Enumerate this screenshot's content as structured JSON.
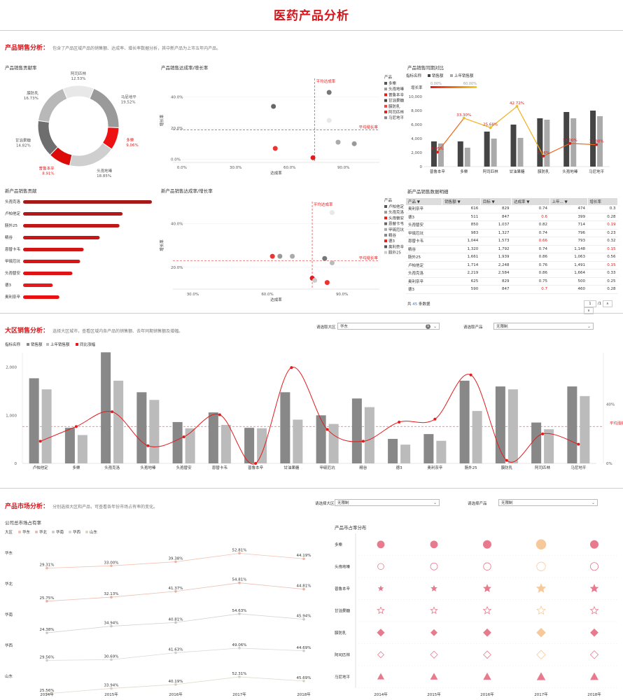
{
  "title": "医药产品分析",
  "sales_section": {
    "title": "产品销售分析：",
    "desc": "包含了产品区域产品的销售额、达成率、增长率数据分析，其中新产品为上市五年内产品。"
  },
  "donut": {
    "title": "产品销售贡献率",
    "slices": [
      {
        "name": "阿司匹林",
        "pct": "12.53%",
        "value": 12.53,
        "color": "#e8e8e8"
      },
      {
        "name": "马尼地平",
        "pct": "19.52%",
        "value": 19.52,
        "color": "#9a9a9a"
      },
      {
        "name": "多樂",
        "pct": "9.06%",
        "value": 9.06,
        "color": "#ee1111"
      },
      {
        "name": "头孢地嗪",
        "pct": "18.85%",
        "value": 18.85,
        "color": "#cfcfcf"
      },
      {
        "name": "普鲁本辛",
        "pct": "8.91%",
        "value": 8.91,
        "color": "#dd0a0a"
      },
      {
        "name": "甘油果糖",
        "pct": "14.82%",
        "value": 14.82,
        "color": "#6e6e6e"
      },
      {
        "name": "膜防乳",
        "pct": "16.73%",
        "value": 16.73,
        "color": "#b8b8b8"
      }
    ]
  },
  "scatter1": {
    "title": "产品销售达成率/增长率",
    "xlabel": "达成率",
    "ylabel": "增长率",
    "xticks": [
      "0.0%",
      "30.0%",
      "60.0%",
      "90.0%"
    ],
    "yticks": [
      "0.0%",
      "20.0%",
      "40.0%"
    ],
    "avg_x_label": "平均达成率",
    "avg_y_label": "平均增长率",
    "avg_x": 0.74,
    "avg_y": 0.19,
    "legend_title": "产品",
    "legend": [
      {
        "name": "多樂",
        "color": "#555"
      },
      {
        "name": "头孢地嗪",
        "color": "#999"
      },
      {
        "name": "普鲁本辛",
        "color": "#e41a1c"
      },
      {
        "name": "甘油果糖",
        "color": "#444"
      },
      {
        "name": "膜防乳",
        "color": "#ee4444"
      },
      {
        "name": "阿司匹林",
        "color": "#dd2222"
      },
      {
        "name": "马尼地平",
        "color": "#888"
      }
    ],
    "points": [
      {
        "x": 0.82,
        "y": 0.43,
        "color": "#777"
      },
      {
        "x": 0.51,
        "y": 0.34,
        "color": "#666"
      },
      {
        "x": 0.82,
        "y": 0.25,
        "color": "#e8e8e8"
      },
      {
        "x": 0.87,
        "y": 0.11,
        "color": "#aaa"
      },
      {
        "x": 0.96,
        "y": 0.1,
        "color": "#999"
      },
      {
        "x": 0.52,
        "y": 0.07,
        "color": "#ee3333"
      },
      {
        "x": 0.73,
        "y": 0.01,
        "color": "#e41a1c"
      }
    ]
  },
  "combo1": {
    "title": "产品销售同期对比",
    "legend_label": "指标名称",
    "legend": [
      {
        "name": "销售额",
        "color": "#444"
      },
      {
        "name": "上年销售额",
        "color": "#aaa"
      }
    ],
    "growth_label": "增长率",
    "growth_range": [
      "0.00%",
      "60.00%"
    ],
    "yticks": [
      "0",
      "2,000",
      "4,000",
      "6,000",
      "8,000",
      "10,000"
    ],
    "ymax": 10000,
    "categories": [
      "普鲁本辛",
      "多樂",
      "阿司匹林",
      "甘油果糖",
      "膜防乳",
      "头孢地嗪",
      "马尼地平"
    ],
    "sales": [
      3600,
      3600,
      5000,
      6000,
      6900,
      7800,
      8000
    ],
    "last": [
      3300,
      2700,
      4000,
      4100,
      6700,
      6900,
      7200
    ],
    "growth": [
      0.0605,
      0.333,
      0.2568,
      0.4272,
      0.0286,
      0.13,
      0.12
    ],
    "growth_labels": [
      "6.05%",
      "33.30%",
      "25.68%",
      "42.72%",
      "2.86%",
      "13.00%",
      "11.98%"
    ]
  },
  "newbars": {
    "title": "新产品销售贡献",
    "categories": [
      "头孢克洛",
      "卢帕他定",
      "肠外25",
      "精谷",
      "恩替卡韦",
      "甲硫厄坑",
      "头孢替安",
      "德3",
      "奥利奈辛"
    ],
    "values": [
      2219,
      1714,
      1661,
      1320,
      1044,
      983,
      850,
      511,
      625
    ]
  },
  "scatter2": {
    "title": "新产品销售达成率/增长率",
    "xlabel": "达成率",
    "ylabel": "增长率",
    "xticks": [
      "30.0%",
      "60.0%",
      "90.0%"
    ],
    "yticks": [
      "20.0%",
      "40.0%"
    ],
    "avg_x_label": "平均达成率",
    "avg_y_label": "平均增长率",
    "avg_x": 0.78,
    "avg_y": 0.23,
    "legend_title": "产品",
    "legend": [
      {
        "name": "卢帕他定",
        "color": "#555"
      },
      {
        "name": "头孢克洛",
        "color": "#999"
      },
      {
        "name": "头孢替安",
        "color": "#e41a1c"
      },
      {
        "name": "恩替卡韦",
        "color": "#666"
      },
      {
        "name": "甲硫厄坑",
        "color": "#aaa"
      },
      {
        "name": "精谷",
        "color": "#888"
      },
      {
        "name": "德3",
        "color": "#e41a1c"
      },
      {
        "name": "奥利奈辛",
        "color": "#555"
      },
      {
        "name": "肠外25",
        "color": "#ccc"
      }
    ],
    "points": [
      {
        "x": 0.86,
        "y": 0.45,
        "color": "#e8e8e8"
      },
      {
        "x": 0.62,
        "y": 0.25,
        "color": "#ee3333"
      },
      {
        "x": 0.65,
        "y": 0.25,
        "color": "#999"
      },
      {
        "x": 0.7,
        "y": 0.25,
        "color": "#aaa"
      },
      {
        "x": 0.83,
        "y": 0.24,
        "color": "#777"
      },
      {
        "x": 0.86,
        "y": 0.22,
        "color": "#bbb"
      },
      {
        "x": 0.78,
        "y": 0.15,
        "color": "#e41a1c"
      },
      {
        "x": 0.79,
        "y": 0.14,
        "color": "#ccc"
      },
      {
        "x": 0.84,
        "y": 0.13,
        "color": "#ee3333"
      }
    ]
  },
  "table": {
    "title": "新产品销售数据明细",
    "headers": [
      "产品",
      "销售额",
      "目标",
      "达成率",
      "上年...",
      "增长率"
    ],
    "rows": [
      [
        "奥利奈辛",
        "616",
        "829",
        "0.74",
        "474",
        "0.3",
        false,
        false
      ],
      [
        "德3",
        "511",
        "847",
        "0.6",
        "399",
        "0.28",
        true,
        false
      ],
      [
        "头孢替安",
        "850",
        "1,037",
        "0.82",
        "714",
        "0.19",
        false,
        true
      ],
      [
        "甲硫厄坑",
        "983",
        "1,327",
        "0.74",
        "796",
        "0.23",
        false,
        false
      ],
      [
        "恩替卡韦",
        "1,044",
        "1,573",
        "0.66",
        "793",
        "0.32",
        true,
        false
      ],
      [
        "精谷",
        "1,320",
        "1,792",
        "0.74",
        "1,148",
        "0.15",
        false,
        true
      ],
      [
        "肠外25",
        "1,661",
        "1,939",
        "0.86",
        "1,063",
        "0.56",
        false,
        false
      ],
      [
        "卢帕他定",
        "1,714",
        "2,248",
        "0.76",
        "1,491",
        "0.15",
        false,
        true
      ],
      [
        "头孢克洛",
        "2,219",
        "2,584",
        "0.86",
        "1,664",
        "0.33",
        false,
        false
      ],
      [
        "奥利奈辛",
        "625",
        "829",
        "0.75",
        "500",
        "0.25",
        false,
        false
      ],
      [
        "德3",
        "590",
        "847",
        "0.7",
        "460",
        "0.28",
        true,
        false
      ]
    ],
    "footer_prefix": "共",
    "footer_count": "45",
    "footer_suffix": "条数据",
    "page": "1",
    "page_total": "/1"
  },
  "region_section": {
    "title": "大区销售分析：",
    "desc": "选择大区城市，查看区域内各产品的销售额、去年同期销售额及增幅。",
    "select_region_label": "请选取大区",
    "select_region_value": "华东",
    "select_region_badge": "1",
    "select_product_label": "请选取产品",
    "select_product_value": "无限制"
  },
  "combo2": {
    "legend_label": "指标名称",
    "legend": [
      {
        "name": "销售额",
        "color": "#888"
      },
      {
        "name": "上年销售额",
        "color": "#bbb"
      },
      {
        "name": "同比涨幅",
        "color": "#e41a1c"
      }
    ],
    "yticks": [
      "0",
      "1,000",
      "2,000"
    ],
    "ymax": 2300,
    "y2ticks": [
      "0%",
      "40%"
    ],
    "avg_label": "平均涨幅",
    "avg": 0.25,
    "categories": [
      "卢帕他定",
      "多樂",
      "头孢克洛",
      "头孢地嗪",
      "头孢替安",
      "恩替卡韦",
      "普鲁本辛",
      "甘油果糖",
      "甲硫厄坑",
      "精谷",
      "德3",
      "奥利奈辛",
      "肠外25",
      "膜防乳",
      "阿司匹林",
      "马尼地平"
    ],
    "sales": [
      1770,
      740,
      2310,
      1480,
      860,
      1060,
      740,
      1480,
      1000,
      1350,
      510,
      610,
      1720,
      1600,
      850,
      1600
    ],
    "last": [
      1540,
      590,
      1720,
      1320,
      730,
      800,
      730,
      910,
      820,
      1170,
      390,
      470,
      1090,
      1540,
      710,
      1400
    ],
    "growth": [
      0.15,
      0.25,
      0.35,
      0.12,
      0.18,
      0.33,
      0.0,
      0.65,
      0.23,
      0.15,
      0.28,
      0.3,
      0.6,
      0.02,
      0.2,
      0.13
    ]
  },
  "market_section": {
    "title": "产品市场分析：",
    "desc": "分别选择大区和产品，可查看各年份市场占有率的变化。",
    "select_region_label": "请选择大区",
    "select_region_value": "无限制",
    "select_product_label": "请选择产品",
    "select_product_value": "无限制"
  },
  "share": {
    "title": "公司总市场占有率",
    "legend_label": "大区",
    "legend": [
      {
        "name": "华东",
        "color": "#f4b9a8"
      },
      {
        "name": "华北",
        "color": "#e9b7a7"
      },
      {
        "name": "华南",
        "color": "#c9c9c9"
      },
      {
        "name": "华西",
        "color": "#d0d0d0"
      },
      {
        "name": "山东",
        "color": "#d9cfc3"
      }
    ],
    "years": [
      "2014年",
      "2015年",
      "2016年",
      "2017年",
      "2018年"
    ],
    "rows": [
      {
        "name": "华东",
        "values": [
          29.31,
          33.0,
          39.38,
          52.81,
          44.19
        ],
        "labels": [
          "29.31%",
          "33.00%",
          "39.38%",
          "52.81%",
          "44.19%"
        ],
        "color": "#f0b3a0"
      },
      {
        "name": "华北",
        "values": [
          25.75,
          32.13,
          41.37,
          54.81,
          44.81
        ],
        "labels": [
          "25.75%",
          "32.13%",
          "41.37%",
          "54.81%",
          "44.81%"
        ],
        "color": "#e5b0a0"
      },
      {
        "name": "华南",
        "values": [
          24.38,
          34.94,
          40.81,
          54.63,
          45.94
        ],
        "labels": [
          "24.38%",
          "34.94%",
          "40.81%",
          "54.63%",
          "45.94%"
        ],
        "color": "#c7c7c7"
      },
      {
        "name": "华西",
        "values": [
          29.56,
          30.69,
          41.63,
          49.06,
          44.69
        ],
        "labels": [
          "29.56%",
          "30.69%",
          "41.63%",
          "49.06%",
          "44.69%"
        ],
        "color": "#cfcfcf"
      },
      {
        "name": "山东",
        "values": [
          25.56,
          33.94,
          40.19,
          52.31,
          45.69
        ],
        "labels": [
          "25.56%",
          "33.94%",
          "40.19%",
          "52.31%",
          "45.69%"
        ],
        "color": "#d8cfc2"
      }
    ]
  },
  "matrix": {
    "title": "产品市占率分布",
    "years": [
      "2014年",
      "2015年",
      "2016年",
      "2017年",
      "2018年"
    ],
    "products": [
      {
        "name": "多樂",
        "shape": "circle",
        "fill": true,
        "color": "#e77a8c",
        "sizes": [
          0.5,
          0.5,
          0.6,
          0.8,
          0.6
        ]
      },
      {
        "name": "头孢地嗪",
        "shape": "circle",
        "fill": false,
        "color": "#e77a8c",
        "sizes": [
          0.4,
          0.5,
          0.55,
          0.7,
          0.6
        ]
      },
      {
        "name": "普鲁本辛",
        "shape": "star",
        "fill": true,
        "color": "#e77a8c",
        "sizes": [
          0.25,
          0.35,
          0.55,
          0.75,
          0.6
        ]
      },
      {
        "name": "甘油果糖",
        "shape": "star",
        "fill": false,
        "color": "#e77a8c",
        "sizes": [
          0.5,
          0.5,
          0.6,
          0.7,
          0.6
        ]
      },
      {
        "name": "膜防乳",
        "shape": "diamond",
        "fill": true,
        "color": "#e77a8c",
        "sizes": [
          0.5,
          0.4,
          0.55,
          0.7,
          0.55
        ]
      },
      {
        "name": "阿司匹林",
        "shape": "diamond",
        "fill": false,
        "color": "#e77a8c",
        "sizes": [
          0.4,
          0.5,
          0.55,
          0.7,
          0.6
        ]
      },
      {
        "name": "马尼地平",
        "shape": "triangle",
        "fill": true,
        "color": "#e77a8c",
        "sizes": [
          0.4,
          0.45,
          0.5,
          0.6,
          0.55
        ]
      }
    ]
  }
}
